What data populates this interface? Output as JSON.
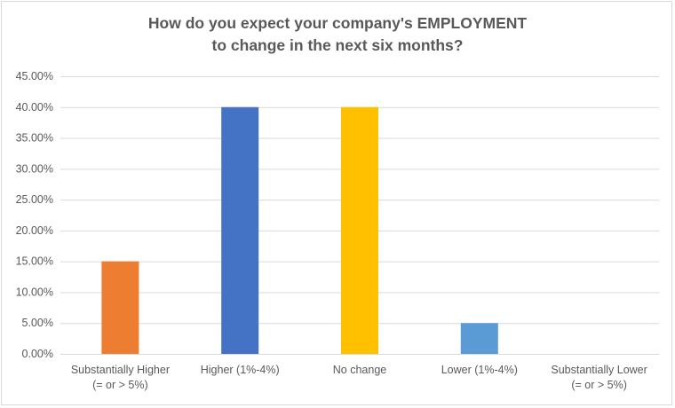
{
  "chart_data": {
    "type": "bar",
    "title_lines": [
      "How do you expect your company's EMPLOYMENT",
      "to change in the next six months?"
    ],
    "categories": [
      [
        "Substantially Higher",
        "(= or > 5%)"
      ],
      [
        "Higher (1%-4%)"
      ],
      [
        "No change"
      ],
      [
        "Lower (1%-4%)"
      ],
      [
        "Substantially Lower",
        "(= or > 5%)"
      ]
    ],
    "values": [
      15,
      40,
      40,
      5,
      0
    ],
    "colors": [
      "#ed7d31",
      "#4472c4",
      "#ffc000",
      "#5b9bd5",
      "#a5a5a5"
    ],
    "ylim": [
      0,
      45
    ],
    "ytick_step": 5,
    "ytick_labels": [
      "0.00%",
      "5.00%",
      "10.00%",
      "15.00%",
      "20.00%",
      "25.00%",
      "30.00%",
      "35.00%",
      "40.00%",
      "45.00%"
    ],
    "grid": true,
    "gridline_color": "#d9d9d9",
    "xlabel": "",
    "ylabel": ""
  }
}
